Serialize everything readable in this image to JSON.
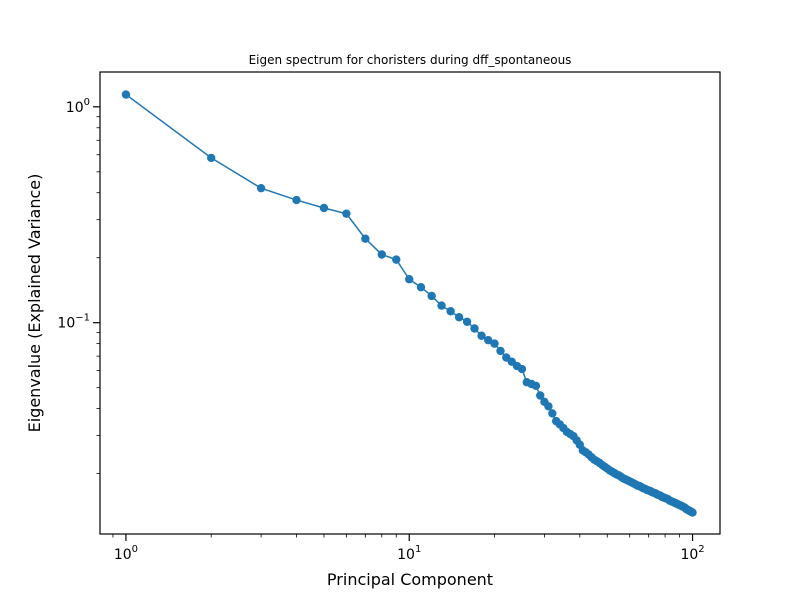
{
  "chart_data": {
    "type": "line",
    "title": "Eigen spectrum for choristers during dff_spontaneous",
    "xlabel": "Principal Component",
    "ylabel": "Eigenvalue (Explained Variance)",
    "xscale": "log",
    "yscale": "log",
    "xlim": [
      0.81,
      125
    ],
    "ylim": [
      0.0105,
      1.45
    ],
    "grid": false,
    "legend": "none",
    "series_color": "#1f77b4",
    "x_major_ticks": [
      {
        "value": 1,
        "base": "10",
        "exp": "0"
      },
      {
        "value": 10,
        "base": "10",
        "exp": "1"
      },
      {
        "value": 100,
        "base": "10",
        "exp": "2"
      }
    ],
    "y_major_ticks": [
      {
        "value": 1,
        "base": "10",
        "exp": "0"
      },
      {
        "value": 0.1,
        "base": "10",
        "exp": "−1"
      }
    ],
    "series": [
      {
        "x": [
          1,
          2,
          3,
          4,
          5,
          6,
          7,
          8,
          9,
          10,
          11,
          12,
          13,
          14,
          15,
          16,
          17,
          18,
          19,
          20,
          21,
          22,
          23,
          24,
          25,
          26,
          27,
          28,
          29,
          30,
          31,
          32,
          33,
          34,
          35,
          36,
          37,
          38,
          39,
          40,
          41,
          42,
          43,
          44,
          45,
          46,
          47,
          48,
          49,
          50,
          51,
          52,
          53,
          54,
          55,
          56,
          57,
          58,
          59,
          60,
          61,
          62,
          63,
          64,
          65,
          66,
          67,
          68,
          69,
          70,
          71,
          72,
          73,
          74,
          75,
          76,
          77,
          78,
          79,
          80,
          81,
          82,
          83,
          84,
          85,
          86,
          87,
          88,
          89,
          90,
          91,
          92,
          93,
          94,
          95,
          96,
          97,
          98,
          99,
          100
        ],
        "values": [
          1.14,
          0.58,
          0.42,
          0.37,
          0.34,
          0.32,
          0.245,
          0.207,
          0.196,
          0.159,
          0.146,
          0.133,
          0.12,
          0.113,
          0.106,
          0.101,
          0.094,
          0.087,
          0.083,
          0.08,
          0.074,
          0.069,
          0.066,
          0.063,
          0.061,
          0.053,
          0.052,
          0.051,
          0.046,
          0.043,
          0.041,
          0.038,
          0.035,
          0.0338,
          0.0325,
          0.0312,
          0.0305,
          0.0298,
          0.0285,
          0.0272,
          0.0256,
          0.0251,
          0.0245,
          0.0238,
          0.0232,
          0.0228,
          0.0224,
          0.0219,
          0.0215,
          0.0211,
          0.0207,
          0.0204,
          0.0201,
          0.0198,
          0.0196,
          0.0193,
          0.019,
          0.0188,
          0.0186,
          0.0184,
          0.0182,
          0.018,
          0.0178,
          0.0176,
          0.0175,
          0.0173,
          0.0171,
          0.017,
          0.0168,
          0.0167,
          0.0166,
          0.0164,
          0.0163,
          0.0162,
          0.016,
          0.0159,
          0.0158,
          0.0156,
          0.0155,
          0.0154,
          0.0153,
          0.0152,
          0.015,
          0.0149,
          0.0148,
          0.0147,
          0.0146,
          0.0145,
          0.0144,
          0.0143,
          0.0142,
          0.0141,
          0.014,
          0.0139,
          0.0137,
          0.0136,
          0.0135,
          0.0134,
          0.0133,
          0.0132
        ]
      }
    ]
  }
}
